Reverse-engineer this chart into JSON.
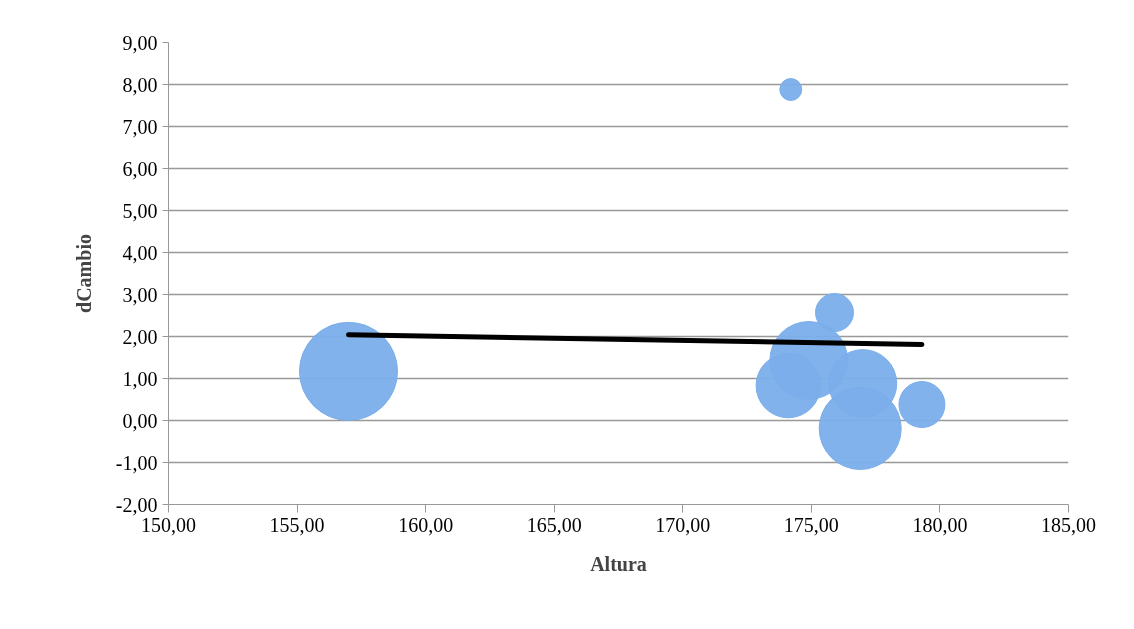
{
  "chart_data": {
    "type": "bubble",
    "xlabel": "Altura",
    "ylabel": "dCambio",
    "xlim": [
      150,
      185
    ],
    "ylim": [
      -2,
      9
    ],
    "xticks": [
      {
        "value": 150,
        "label": "150,00"
      },
      {
        "value": 155,
        "label": "155,00"
      },
      {
        "value": 160,
        "label": "160,00"
      },
      {
        "value": 165,
        "label": "165,00"
      },
      {
        "value": 170,
        "label": "170,00"
      },
      {
        "value": 175,
        "label": "175,00"
      },
      {
        "value": 180,
        "label": "180,00"
      },
      {
        "value": 185,
        "label": "185,00"
      }
    ],
    "yticks": [
      {
        "value": -2,
        "label": "-2,00"
      },
      {
        "value": -1,
        "label": "-1,00"
      },
      {
        "value": 0,
        "label": "0,00"
      },
      {
        "value": 1,
        "label": "1,00"
      },
      {
        "value": 2,
        "label": "2,00"
      },
      {
        "value": 3,
        "label": "3,00"
      },
      {
        "value": 4,
        "label": "4,00"
      },
      {
        "value": 5,
        "label": "5,00"
      },
      {
        "value": 6,
        "label": "6,00"
      },
      {
        "value": 7,
        "label": "7,00"
      },
      {
        "value": 8,
        "label": "8,00"
      },
      {
        "value": 9,
        "label": "9,00"
      }
    ],
    "grid": "y",
    "series": [
      {
        "marker": "circle",
        "color": "#7aaeea",
        "x": [
          157.0,
          174.2,
          175.9,
          174.9,
          174.1,
          177.0,
          176.9,
          179.3
        ],
        "values": [
          1.17,
          7.88,
          2.57,
          1.43,
          0.83,
          0.88,
          -0.19,
          0.38
        ],
        "sizes": [
          1,
          0.05,
          0.15,
          0.63,
          0.43,
          0.48,
          0.7,
          0.22
        ]
      },
      {
        "type": "line",
        "marker": "none",
        "color": "#000000",
        "x": [
          157.0,
          179.3
        ],
        "values": [
          2.04,
          1.81
        ]
      }
    ]
  }
}
